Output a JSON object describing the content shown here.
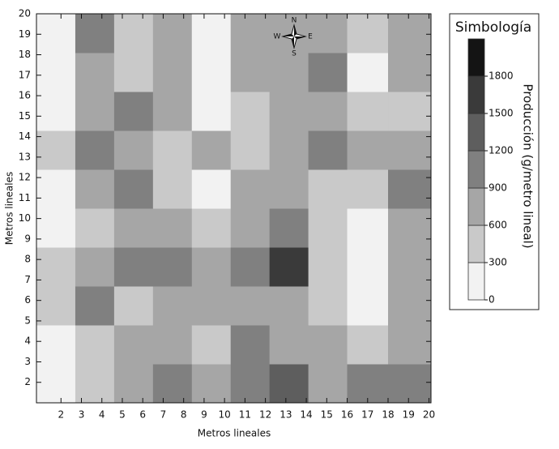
{
  "chart_data": {
    "type": "contour",
    "x_label": "Metros lineales",
    "y_label": "Metros lineales",
    "xlim": [
      0.8,
      20.1
    ],
    "ylim": [
      1,
      20
    ],
    "xticks": [
      2,
      3,
      4,
      5,
      6,
      7,
      8,
      9,
      10,
      11,
      12,
      13,
      14,
      15,
      16,
      17,
      18,
      19,
      20
    ],
    "yticks": [
      2,
      3,
      4,
      5,
      6,
      7,
      8,
      9,
      10,
      11,
      12,
      13,
      14,
      15,
      16,
      17,
      18,
      19,
      20
    ],
    "xbins": [
      0.8,
      2.7,
      4.6,
      6.5,
      8.4,
      10.3,
      12.2,
      14.1,
      16,
      18,
      20.1
    ],
    "ybins": [
      1,
      2.9,
      4.8,
      6.7,
      8.6,
      10.5,
      12.4,
      14.3,
      16.2,
      18.1,
      20
    ],
    "z": [
      [
        200,
        500,
        800,
        900,
        600,
        1100,
        1200,
        700,
        1000,
        900
      ],
      [
        200,
        500,
        800,
        700,
        400,
        1000,
        600,
        800,
        500,
        700
      ],
      [
        300,
        900,
        500,
        800,
        700,
        700,
        700,
        400,
        200,
        700
      ],
      [
        400,
        800,
        900,
        1100,
        800,
        1000,
        1700,
        500,
        150,
        800
      ],
      [
        150,
        500,
        800,
        800,
        500,
        700,
        900,
        300,
        150,
        600
      ],
      [
        150,
        700,
        900,
        500,
        150,
        600,
        800,
        500,
        300,
        1000
      ],
      [
        500,
        1000,
        700,
        400,
        600,
        400,
        700,
        900,
        600,
        700
      ],
      [
        200,
        700,
        1000,
        700,
        150,
        300,
        700,
        600,
        400,
        500
      ],
      [
        100,
        700,
        500,
        700,
        150,
        700,
        700,
        1000,
        200,
        600
      ],
      [
        100,
        1000,
        400,
        700,
        150,
        700,
        800,
        700,
        400,
        700
      ]
    ],
    "legend_title": "Simbología",
    "colorbar_label": "Producción (g/metro lineal)",
    "zlim": [
      0,
      2100
    ],
    "legend_ticks": [
      0,
      300,
      600,
      900,
      1200,
      1500,
      1800
    ],
    "legend_colors": [
      "#f2f2f2",
      "#c9c9c9",
      "#a6a6a6",
      "#808080",
      "#5e5e5e",
      "#3a3a3a",
      "#141414"
    ],
    "compass": {
      "n": "N",
      "s": "S",
      "e": "E",
      "w": "W"
    }
  }
}
